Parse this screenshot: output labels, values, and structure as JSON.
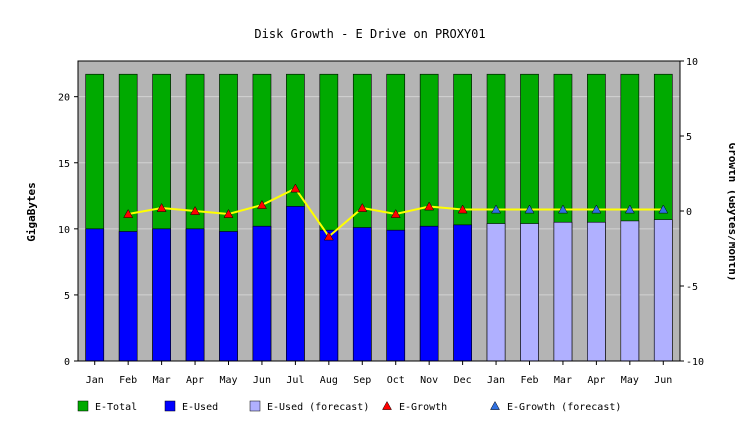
{
  "chart_data": {
    "type": "bar",
    "title": "Disk Growth - E Drive on PROXY01",
    "ylabel": "GigaBytes",
    "y2label": "Growth (GBytes/Month)",
    "categories": [
      "Jan",
      "Feb",
      "Mar",
      "Apr",
      "May",
      "Jun",
      "Jul",
      "Aug",
      "Sep",
      "Oct",
      "Nov",
      "Dec",
      "Jan",
      "Feb",
      "Mar",
      "Apr",
      "May",
      "Jun"
    ],
    "ylim": [
      0,
      22.7
    ],
    "yticks": [
      0,
      5,
      10,
      15,
      20
    ],
    "y2lim": [
      -10,
      10
    ],
    "y2ticks": [
      -10,
      -5,
      0,
      5,
      10
    ],
    "grid": true,
    "legend_position": "bottom",
    "series": [
      {
        "name": "E-Total",
        "kind": "bar",
        "color": "#00aa00",
        "values": [
          21.7,
          21.7,
          21.7,
          21.7,
          21.7,
          21.7,
          21.7,
          21.7,
          21.7,
          21.7,
          21.7,
          21.7,
          21.7,
          21.7,
          21.7,
          21.7,
          21.7,
          21.7
        ]
      },
      {
        "name": "E-Used",
        "kind": "bar",
        "color": "#0000ff",
        "values": [
          10.0,
          9.8,
          10.0,
          10.0,
          9.8,
          10.2,
          11.7,
          9.9,
          10.1,
          9.9,
          10.2,
          10.3,
          null,
          null,
          null,
          null,
          null,
          null
        ]
      },
      {
        "name": "E-Used (forecast)",
        "kind": "bar",
        "color": "#b0b0ff",
        "values": [
          null,
          null,
          null,
          null,
          null,
          null,
          null,
          null,
          null,
          null,
          null,
          null,
          10.4,
          10.4,
          10.5,
          10.5,
          10.6,
          10.7
        ]
      },
      {
        "name": "E-Growth",
        "kind": "line",
        "axis": "right",
        "color": "#ff0000",
        "line_color": "#ffff00",
        "values": [
          null,
          -0.2,
          0.2,
          0.0,
          -0.2,
          0.4,
          1.5,
          -1.7,
          0.2,
          -0.2,
          0.3,
          0.1,
          null,
          null,
          null,
          null,
          null,
          null
        ]
      },
      {
        "name": "E-Growth (forecast)",
        "kind": "line",
        "axis": "right",
        "color": "#3070e0",
        "line_color": "#ffff00",
        "values": [
          null,
          null,
          null,
          null,
          null,
          null,
          null,
          null,
          null,
          null,
          null,
          null,
          0.1,
          0.1,
          0.1,
          0.1,
          0.1,
          0.1
        ]
      }
    ]
  }
}
